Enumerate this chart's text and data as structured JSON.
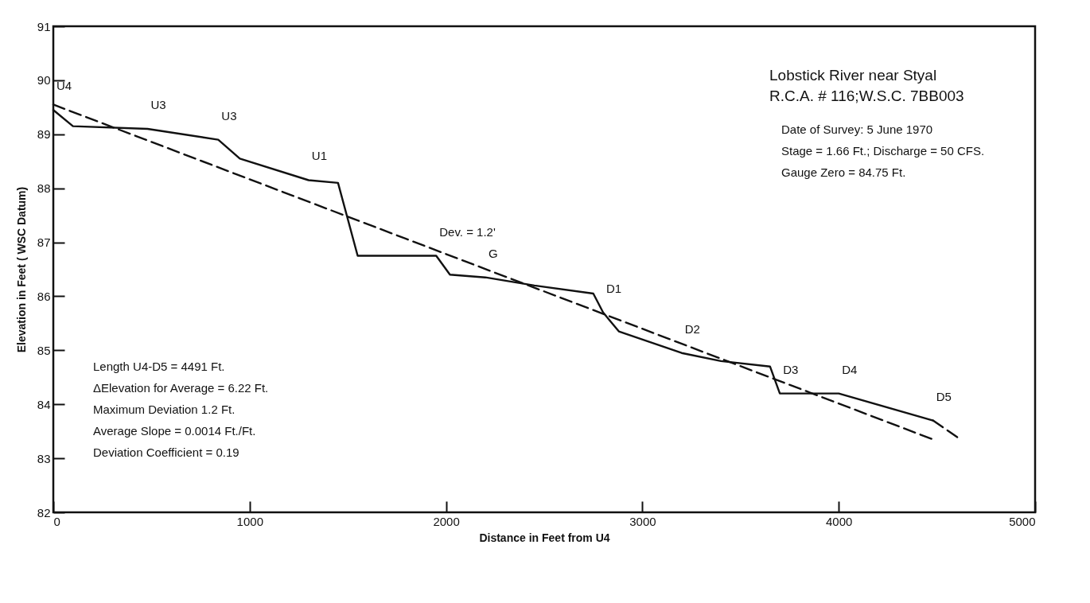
{
  "chart_data": {
    "type": "line",
    "title": "Lobstick River near Styal",
    "subtitle": "R.C.A. # 116;W.S.C. 7BB003",
    "xlabel": "Distance in Feet from U4",
    "ylabel": "Elevation in Feet ( WSC Datum)",
    "xlim": [
      0,
      5000
    ],
    "xticks": [
      0,
      1000,
      2000,
      3000,
      4000,
      5000
    ],
    "ylim": [
      82,
      91
    ],
    "yticks": [
      82,
      83,
      84,
      85,
      86,
      87,
      88,
      89,
      90,
      91
    ],
    "grid": false,
    "marker": "none",
    "series": [
      {
        "color": "#111111",
        "line_style": "solid",
        "x": [
          0,
          100,
          480,
          840,
          950,
          1300,
          1450,
          1550,
          1950,
          2020,
          2200,
          2450,
          2750,
          2800,
          2880,
          3200,
          3400,
          3650,
          3700,
          4000,
          4480
        ],
        "values": [
          89.45,
          89.15,
          89.1,
          88.9,
          88.55,
          88.15,
          88.1,
          86.75,
          86.75,
          86.4,
          86.35,
          86.2,
          86.05,
          85.7,
          85.35,
          84.95,
          84.8,
          84.7,
          84.2,
          84.2,
          83.7
        ]
      },
      {
        "color": "#111111",
        "line_style": "dashed",
        "x": [
          4480,
          4620
        ],
        "values": [
          83.7,
          83.35
        ]
      },
      {
        "color": "#111111",
        "line_style": "dashed",
        "x": [
          0,
          4480
        ],
        "values": [
          89.55,
          83.35
        ]
      }
    ],
    "annotations": [
      {
        "text": "U4",
        "x": 0,
        "y": 89.45
      },
      {
        "text": "U3",
        "x": 480,
        "y": 89.1
      },
      {
        "text": "U3",
        "x": 840,
        "y": 88.9
      },
      {
        "text": "U1",
        "x": 1300,
        "y": 88.15
      },
      {
        "text": "G",
        "x": 2200,
        "y": 86.35
      },
      {
        "text": "D1",
        "x": 2800,
        "y": 85.7
      },
      {
        "text": "D2",
        "x": 3200,
        "y": 84.95
      },
      {
        "text": "D3",
        "x": 3700,
        "y": 84.2
      },
      {
        "text": "D4",
        "x": 4000,
        "y": 84.2
      },
      {
        "text": "D5",
        "x": 4480,
        "y": 83.7
      },
      {
        "text": "Dev. = 1.2'",
        "x": 1950,
        "y": 86.75
      },
      "Date of Survey: 5 June 1970",
      "Stage = 1.66  Ft.; Discharge = 50 CFS.",
      "Gauge Zero = 84.75 Ft.",
      "Length U4-D5 = 4491 Ft.",
      "ΔElevation for Average = 6.22 Ft.",
      "Maximum Deviation 1.2 Ft.",
      "Average Slope = 0.0014 Ft./Ft.",
      "Deviation Coefficient = 0.19"
    ]
  }
}
